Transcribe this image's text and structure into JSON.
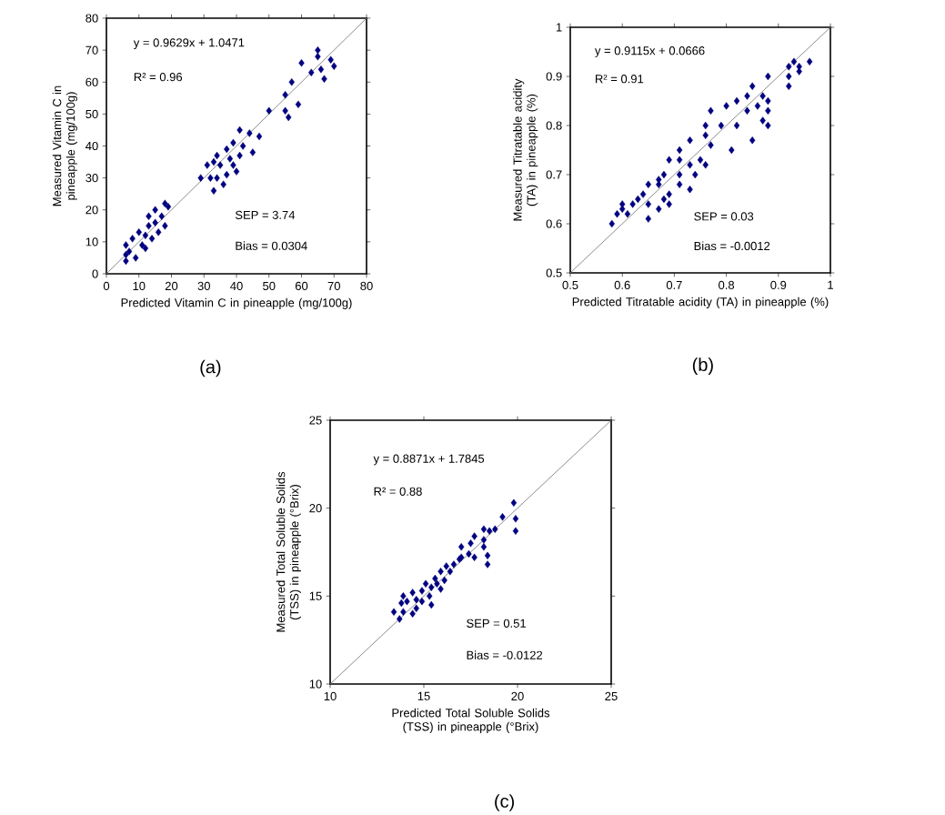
{
  "chart_data": [
    {
      "type": "scatter",
      "xlabel": "Predicted Vitamin C in pineapple (mg/100g)",
      "ylabel": "Measured Vitamin C in pineapple (mg/100g)",
      "xlim": [
        0,
        80
      ],
      "ylim": [
        0,
        80
      ],
      "xticks": [
        0,
        10,
        20,
        30,
        40,
        50,
        60,
        70,
        80
      ],
      "yticks": [
        0,
        10,
        20,
        30,
        40,
        50,
        60,
        70,
        80
      ],
      "marker": "diamond",
      "annotations": [
        "y = 0.9629x + 1.0471",
        "R² = 0.96",
        "SEP = 3.74",
        "Bias = 0.0304",
        "(a)"
      ],
      "series": [
        {
          "color": "#000080",
          "x": [
            65,
            60,
            65,
            69,
            70,
            66,
            63,
            67,
            57,
            55,
            59,
            50,
            55,
            56,
            41,
            44,
            47,
            39,
            42,
            37,
            45,
            34,
            41,
            33,
            35,
            31,
            39,
            40,
            29,
            32,
            37,
            36,
            34,
            33,
            38,
            18,
            19,
            15,
            13,
            17,
            15,
            18,
            10,
            12,
            8,
            14,
            11,
            6,
            7,
            12,
            9,
            6,
            6,
            16,
            13
          ],
          "values": [
            70,
            66,
            68,
            67,
            65,
            64,
            63,
            61,
            60,
            56,
            53,
            51,
            51,
            49,
            45,
            44,
            43,
            41,
            40,
            39,
            38,
            37,
            37,
            35,
            34,
            34,
            34,
            32,
            30,
            30,
            31,
            28,
            30,
            26,
            36,
            22,
            21,
            20,
            18,
            18,
            16,
            15,
            13,
            12,
            11,
            11,
            9,
            9,
            7,
            8,
            5,
            4,
            6,
            13,
            15
          ]
        },
        {
          "type": "line",
          "color": "#808080",
          "x": [
            0,
            80
          ],
          "values": [
            0,
            80
          ],
          "marker": "none"
        }
      ]
    },
    {
      "type": "scatter",
      "xlabel": "Predicted Titratable acidity (TA) in pineapple (%)",
      "ylabel": "Measured Titratable acidity (TA) in pineapple (%)",
      "xlim": [
        0.5,
        1
      ],
      "ylim": [
        0.5,
        1
      ],
      "xticks": [
        0.5,
        0.6,
        0.7,
        0.8,
        0.9,
        1
      ],
      "yticks": [
        0.5,
        0.6,
        0.7,
        0.8,
        0.9,
        1
      ],
      "marker": "diamond",
      "annotations": [
        "y = 0.9115x + 0.0666",
        "R² = 0.91",
        "SEP = 0.03",
        "Bias = -0.0012",
        "(b)"
      ],
      "series": [
        {
          "color": "#000080",
          "x": [
            0.96,
            0.93,
            0.92,
            0.94,
            0.94,
            0.92,
            0.88,
            0.92,
            0.85,
            0.84,
            0.87,
            0.88,
            0.82,
            0.86,
            0.84,
            0.88,
            0.8,
            0.77,
            0.87,
            0.79,
            0.82,
            0.88,
            0.76,
            0.73,
            0.76,
            0.77,
            0.85,
            0.81,
            0.71,
            0.69,
            0.71,
            0.73,
            0.76,
            0.75,
            0.71,
            0.68,
            0.71,
            0.74,
            0.67,
            0.65,
            0.67,
            0.73,
            0.68,
            0.63,
            0.64,
            0.65,
            0.69,
            0.62,
            0.6,
            0.67,
            0.69,
            0.6,
            0.59,
            0.61,
            0.65,
            0.58
          ],
          "values": [
            0.93,
            0.93,
            0.92,
            0.92,
            0.91,
            0.9,
            0.9,
            0.88,
            0.88,
            0.86,
            0.86,
            0.85,
            0.85,
            0.84,
            0.83,
            0.83,
            0.84,
            0.83,
            0.81,
            0.8,
            0.8,
            0.8,
            0.8,
            0.77,
            0.78,
            0.76,
            0.77,
            0.75,
            0.75,
            0.73,
            0.73,
            0.72,
            0.72,
            0.73,
            0.7,
            0.7,
            0.68,
            0.7,
            0.69,
            0.68,
            0.68,
            0.67,
            0.65,
            0.65,
            0.66,
            0.64,
            0.66,
            0.64,
            0.64,
            0.63,
            0.64,
            0.63,
            0.62,
            0.62,
            0.61,
            0.6
          ]
        },
        {
          "type": "line",
          "color": "#808080",
          "x": [
            0.5,
            1
          ],
          "values": [
            0.5,
            1
          ],
          "marker": "none"
        }
      ]
    },
    {
      "type": "scatter",
      "xlabel": "Predicted Total Soluble Solids (TSS) in pineapple (°Brix)",
      "ylabel": "Measured Total Soluble Solids (TSS) in pineapple (°Brix)",
      "xlim": [
        10,
        25
      ],
      "ylim": [
        10,
        25
      ],
      "xticks": [
        10,
        15,
        20,
        25
      ],
      "yticks": [
        10,
        15,
        20,
        25
      ],
      "marker": "diamond",
      "annotations": [
        "y = 0.8871x + 1.7845",
        "R² = 0.88",
        "SEP = 0.51",
        "Bias = -0.0122",
        "(c)"
      ],
      "series": [
        {
          "color": "#000080",
          "x": [
            19.8,
            19.9,
            19.9,
            19.2,
            18.8,
            18.2,
            17.7,
            18.2,
            17.5,
            17.0,
            18.2,
            18.4,
            17.7,
            17.4,
            18.4,
            16.9,
            16.6,
            16.2,
            15.9,
            16.4,
            15.6,
            16.1,
            15.1,
            15.4,
            15.9,
            14.9,
            15.3,
            14.4,
            13.9,
            14.6,
            14.1,
            13.8,
            15.4,
            13.4,
            13.9,
            14.4,
            13.7,
            14.6,
            14.9,
            15.7,
            17.0,
            18.5
          ],
          "values": [
            20.3,
            19.4,
            18.7,
            19.5,
            18.8,
            18.8,
            18.4,
            18.2,
            18.0,
            17.8,
            17.8,
            17.3,
            17.2,
            17.4,
            16.8,
            17.1,
            16.8,
            16.7,
            16.4,
            16.4,
            16.0,
            15.9,
            15.7,
            15.5,
            15.4,
            15.3,
            15.0,
            15.2,
            15.0,
            14.8,
            14.7,
            14.6,
            14.5,
            14.1,
            14.1,
            14.0,
            13.7,
            14.3,
            14.7,
            15.7,
            17.2,
            18.7
          ]
        },
        {
          "type": "line",
          "color": "#808080",
          "x": [
            10,
            25
          ],
          "values": [
            10,
            25
          ],
          "marker": "none"
        }
      ]
    }
  ]
}
